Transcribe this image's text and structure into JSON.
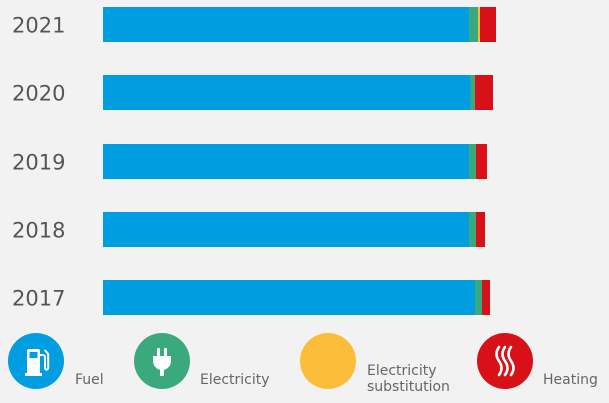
{
  "chart_data": {
    "type": "bar",
    "orientation": "horizontal",
    "stacked": true,
    "categories": [
      "2021",
      "2020",
      "2019",
      "2018",
      "2017"
    ],
    "series": [
      {
        "name": "Fuel",
        "color": "#009ee0",
        "values": [
          366,
          367,
          366,
          366,
          372
        ]
      },
      {
        "name": "Electricity",
        "color": "#3aaa7e",
        "values": [
          9,
          5,
          7,
          7,
          7
        ]
      },
      {
        "name": "Electricity substitution",
        "color": "#fbbd3a",
        "values": [
          2,
          0,
          0,
          0,
          0
        ]
      },
      {
        "name": "Heating",
        "color": "#d81119",
        "values": [
          16,
          18,
          11,
          9,
          8
        ]
      }
    ],
    "xlim": [
      0,
      400
    ],
    "grid": false,
    "legend_position": "bottom"
  },
  "legend": [
    {
      "label": "Fuel",
      "icon": "fuel-pump-icon",
      "color": "#009ee0"
    },
    {
      "label": "Electricity",
      "icon": "plug-icon",
      "color": "#3aaa7e"
    },
    {
      "label": "Electricity\nsubstitution",
      "icon": "",
      "color": "#fbbd3a"
    },
    {
      "label": "Heating",
      "icon": "heat-waves-icon",
      "color": "#d81119"
    }
  ]
}
